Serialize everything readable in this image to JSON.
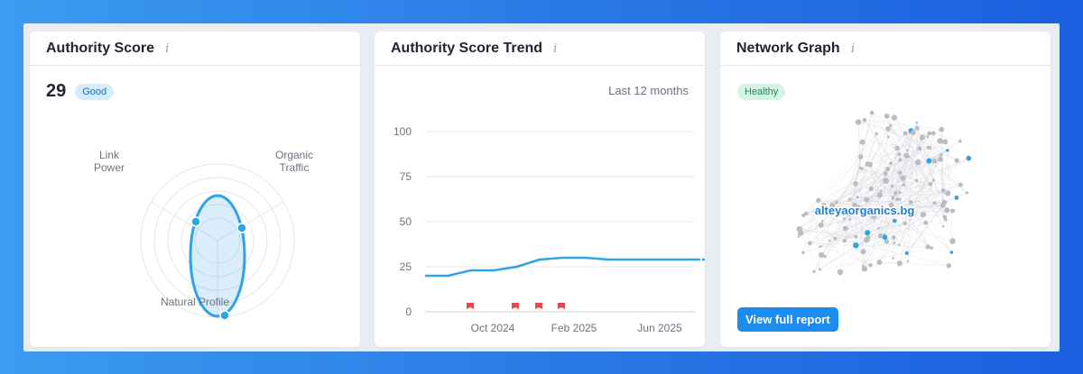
{
  "cards": {
    "authority": {
      "title": "Authority Score",
      "score": "29",
      "badge": "Good",
      "axes": {
        "link_power": [
          "Link",
          "Power"
        ],
        "organic_traffic": [
          "Organic",
          "Traffic"
        ],
        "natural_profile": "Natural Profile"
      }
    },
    "trend": {
      "title": "Authority Score Trend",
      "period": "Last 12 months"
    },
    "network": {
      "title": "Network Graph",
      "badge": "Healthy",
      "center_label": "alteyaorganics.bg",
      "button_label": "View full report"
    }
  },
  "info_icon_glyph": "i",
  "colors": {
    "accent": "#1b8df0",
    "line": "#2ea3e6",
    "marker": "#e5484d",
    "healthy": "#1c8a55"
  },
  "chart_data": {
    "type": "line",
    "title": "Authority Score Trend",
    "xlabel": "",
    "ylabel": "",
    "ylim": [
      0,
      100
    ],
    "yticks": [
      0,
      25,
      50,
      75,
      100
    ],
    "xticks": [
      "Oct 2024",
      "Feb 2025",
      "Jun 2025"
    ],
    "grid": true,
    "series": [
      {
        "values": [
          20,
          20,
          23,
          23,
          25,
          29,
          30,
          30,
          29,
          29,
          29,
          29,
          29
        ]
      }
    ],
    "projection_values": [
      29,
      29
    ],
    "event_markers": 4
  }
}
